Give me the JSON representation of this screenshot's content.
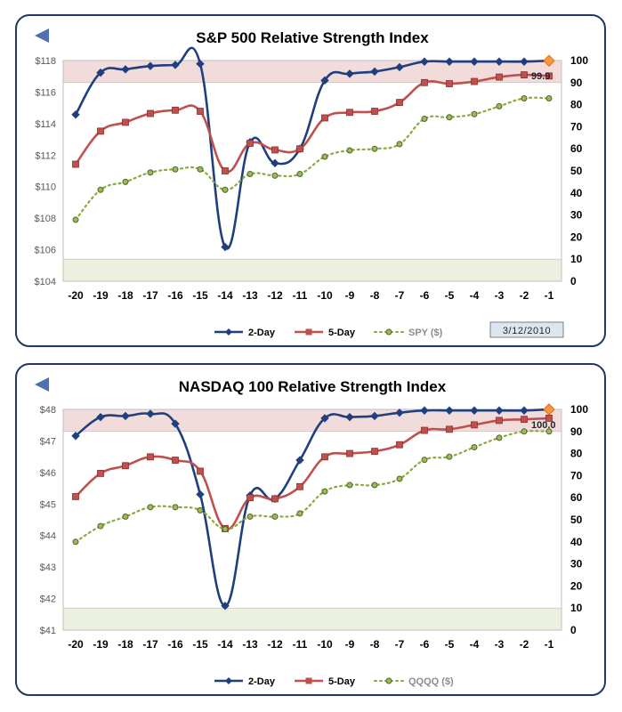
{
  "colors": {
    "two_day": "#1f3f7f",
    "five_day": "#c0504d",
    "price": "#8aaa3f",
    "overbought_band": "#f2dcdb",
    "oversold_band": "#ebf1de",
    "grid": "#d9d9d9"
  },
  "icons": {
    "back": "back-arrow-icon"
  },
  "chart_data": [
    {
      "type": "line",
      "title": "S&P 500 Relative Strength Index",
      "date_box": "3/12/2010",
      "end_label": "99.9",
      "categories": [
        "-20",
        "-19",
        "-18",
        "-17",
        "-16",
        "-15",
        "-14",
        "-13",
        "-12",
        "-11",
        "-10",
        "-9",
        "-8",
        "-7",
        "-6",
        "-5",
        "-4",
        "-3",
        "-2",
        "-1"
      ],
      "left_axis": {
        "min": 104,
        "max": 118,
        "ticks": [
          "$118",
          "$116",
          "$114",
          "$112",
          "$110",
          "$108",
          "$106",
          "$104"
        ]
      },
      "right_axis": {
        "min": 0,
        "max": 100,
        "ticks": [
          "100",
          "90",
          "80",
          "70",
          "60",
          "50",
          "40",
          "30",
          "20",
          "10",
          "0"
        ]
      },
      "bands": {
        "overbought": [
          90,
          100
        ],
        "oversold": [
          0,
          10
        ]
      },
      "series": [
        {
          "name": "2-Day",
          "axis": "right",
          "style": "solid-diamond",
          "values": [
            75.5,
            94.5,
            96,
            97.5,
            98,
            98.5,
            15.5,
            63,
            53.5,
            60,
            91,
            94,
            95,
            97,
            99.5,
            99.5,
            99.5,
            99.5,
            99.5,
            99.9
          ]
        },
        {
          "name": "5-Day",
          "axis": "right",
          "style": "solid-square",
          "values": [
            53,
            68,
            72,
            76,
            77.5,
            77,
            50,
            62.5,
            59.5,
            60,
            74,
            76.5,
            77,
            81,
            90,
            89.5,
            90.5,
            92.5,
            93.5,
            93
          ]
        },
        {
          "name": "SPY ($)",
          "axis": "left",
          "style": "dotted-circle",
          "values": [
            107.9,
            109.8,
            110.3,
            110.9,
            111.1,
            111.1,
            109.8,
            110.8,
            110.7,
            110.8,
            111.9,
            112.3,
            112.4,
            112.7,
            114.3,
            114.4,
            114.6,
            115.1,
            115.6,
            115.6
          ]
        }
      ]
    },
    {
      "type": "line",
      "title": "NASDAQ 100 Relative Strength Index",
      "date_box": "",
      "end_label": "100.0",
      "categories": [
        "-20",
        "-19",
        "-18",
        "-17",
        "-16",
        "-15",
        "-14",
        "-13",
        "-12",
        "-11",
        "-10",
        "-9",
        "-8",
        "-7",
        "-6",
        "-5",
        "-4",
        "-3",
        "-2",
        "-1"
      ],
      "left_axis": {
        "min": 41,
        "max": 48,
        "ticks": [
          "$48",
          "$47",
          "$46",
          "$45",
          "$44",
          "$43",
          "$42",
          "$41"
        ]
      },
      "right_axis": {
        "min": 0,
        "max": 100,
        "ticks": [
          "100",
          "90",
          "80",
          "70",
          "60",
          "50",
          "40",
          "30",
          "20",
          "10",
          "0"
        ]
      },
      "bands": {
        "overbought": [
          90,
          100
        ],
        "oversold": [
          0,
          10
        ]
      },
      "series": [
        {
          "name": "2-Day",
          "axis": "right",
          "style": "solid-diamond",
          "values": [
            88,
            96.5,
            97,
            98,
            93.5,
            61.5,
            11,
            61,
            59.5,
            77,
            96,
            96.5,
            97,
            98.5,
            99.5,
            99.5,
            99.5,
            99.5,
            99.5,
            100.0
          ]
        },
        {
          "name": "5-Day",
          "axis": "right",
          "style": "solid-square",
          "values": [
            60.5,
            71,
            74.5,
            78.5,
            77,
            72,
            46,
            60,
            59.5,
            65,
            78.5,
            80,
            81,
            84,
            90.5,
            91,
            93,
            95,
            95.5,
            96
          ]
        },
        {
          "name": "QQQQ ($)",
          "axis": "left",
          "style": "dotted-circle",
          "values": [
            43.8,
            44.3,
            44.6,
            44.9,
            44.9,
            44.8,
            44.2,
            44.6,
            44.6,
            44.7,
            45.4,
            45.6,
            45.6,
            45.8,
            46.4,
            46.5,
            46.8,
            47.1,
            47.3,
            47.3
          ]
        }
      ]
    }
  ]
}
